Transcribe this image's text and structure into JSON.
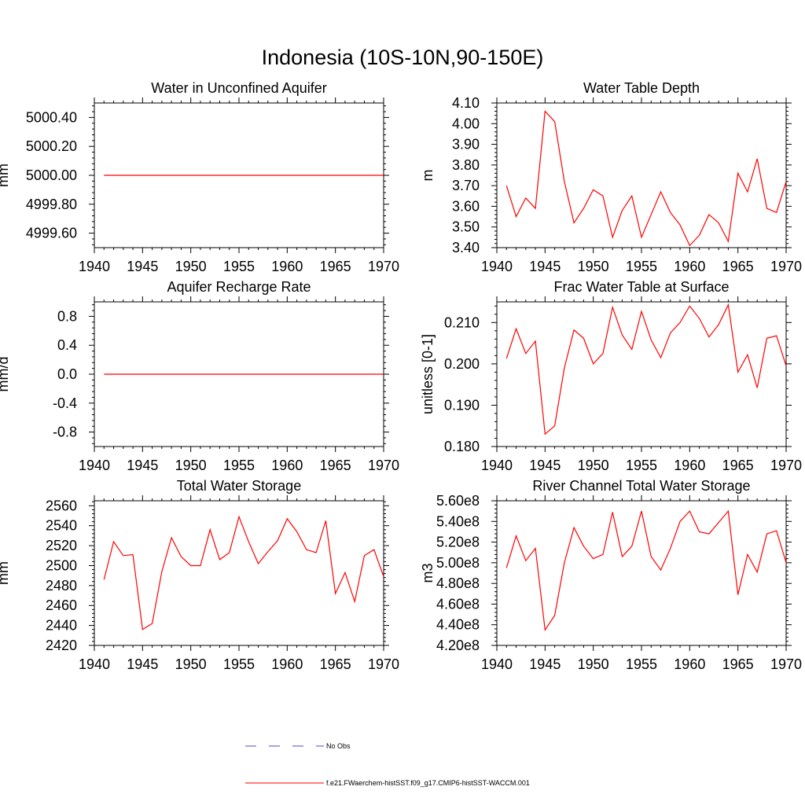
{
  "figure": {
    "title": "Indonesia (10S-10N,90-150E)",
    "legend": {
      "entries": [
        {
          "label": "No Obs",
          "color": "#4a4ac8",
          "style": "dashed"
        },
        {
          "label": "f.e21.FWaerchem-histSST.f09_g17.CMIP6-histSST-WACCM.001",
          "color": "#ff0000",
          "style": "solid"
        }
      ]
    }
  },
  "chart_data": [
    {
      "type": "line",
      "title": "Water in Unconfined Aquifer",
      "xlabel": "",
      "ylabel": "mm",
      "xlim": [
        1940,
        1970
      ],
      "ylim": [
        4999.5,
        5000.5
      ],
      "xticks": [
        1940,
        1945,
        1950,
        1955,
        1960,
        1965,
        1970
      ],
      "yticks": [
        4999.6,
        4999.8,
        5000.0,
        5000.2,
        5000.4
      ],
      "ytick_labels": [
        "4999.60",
        "4999.80",
        "5000.00",
        "5000.20",
        "5000.40"
      ],
      "series": [
        {
          "color": "#ff0000",
          "x": [
            1941,
            1942,
            1943,
            1944,
            1945,
            1946,
            1947,
            1948,
            1949,
            1950,
            1951,
            1952,
            1953,
            1954,
            1955,
            1956,
            1957,
            1958,
            1959,
            1960,
            1961,
            1962,
            1963,
            1964,
            1965,
            1966,
            1967,
            1968,
            1969,
            1970
          ],
          "y": [
            5000,
            5000,
            5000,
            5000,
            5000,
            5000,
            5000,
            5000,
            5000,
            5000,
            5000,
            5000,
            5000,
            5000,
            5000,
            5000,
            5000,
            5000,
            5000,
            5000,
            5000,
            5000,
            5000,
            5000,
            5000,
            5000,
            5000,
            5000,
            5000,
            5000
          ]
        }
      ]
    },
    {
      "type": "line",
      "title": "Water Table Depth",
      "xlabel": "",
      "ylabel": "m",
      "xlim": [
        1940,
        1970
      ],
      "ylim": [
        3.4,
        4.1
      ],
      "xticks": [
        1940,
        1945,
        1950,
        1955,
        1960,
        1965,
        1970
      ],
      "yticks": [
        3.4,
        3.5,
        3.6,
        3.7,
        3.8,
        3.9,
        4.0,
        4.1
      ],
      "ytick_labels": [
        "3.40",
        "3.50",
        "3.60",
        "3.70",
        "3.80",
        "3.90",
        "4.00",
        "4.10"
      ],
      "series": [
        {
          "color": "#ff0000",
          "x": [
            1941,
            1942,
            1943,
            1944,
            1945,
            1946,
            1947,
            1948,
            1949,
            1950,
            1951,
            1952,
            1953,
            1954,
            1955,
            1956,
            1957,
            1958,
            1959,
            1960,
            1961,
            1962,
            1963,
            1964,
            1965,
            1966,
            1967,
            1968,
            1969,
            1970
          ],
          "y": [
            3.7,
            3.55,
            3.64,
            3.59,
            4.06,
            4.01,
            3.72,
            3.52,
            3.59,
            3.68,
            3.65,
            3.45,
            3.58,
            3.65,
            3.45,
            3.56,
            3.67,
            3.57,
            3.51,
            3.41,
            3.46,
            3.56,
            3.52,
            3.43,
            3.76,
            3.67,
            3.83,
            3.59,
            3.57,
            3.72
          ]
        }
      ]
    },
    {
      "type": "line",
      "title": "Aquifer Recharge Rate",
      "xlabel": "",
      "ylabel": "mm/d",
      "xlim": [
        1940,
        1970
      ],
      "ylim": [
        -1.0,
        1.0
      ],
      "xticks": [
        1940,
        1945,
        1950,
        1955,
        1960,
        1965,
        1970
      ],
      "yticks": [
        -0.8,
        -0.4,
        0.0,
        0.4,
        0.8
      ],
      "ytick_labels": [
        "-0.8",
        "-0.4",
        "0.0",
        "0.4",
        "0.8"
      ],
      "series": [
        {
          "color": "#ff0000",
          "x": [
            1941,
            1942,
            1943,
            1944,
            1945,
            1946,
            1947,
            1948,
            1949,
            1950,
            1951,
            1952,
            1953,
            1954,
            1955,
            1956,
            1957,
            1958,
            1959,
            1960,
            1961,
            1962,
            1963,
            1964,
            1965,
            1966,
            1967,
            1968,
            1969,
            1970
          ],
          "y": [
            0,
            0,
            0,
            0,
            0,
            0,
            0,
            0,
            0,
            0,
            0,
            0,
            0,
            0,
            0,
            0,
            0,
            0,
            0,
            0,
            0,
            0,
            0,
            0,
            0,
            0,
            0,
            0,
            0,
            0
          ]
        }
      ]
    },
    {
      "type": "line",
      "title": "Frac Water Table at Surface",
      "xlabel": "",
      "ylabel": "unitless [0-1]",
      "xlim": [
        1940,
        1970
      ],
      "ylim": [
        0.18,
        0.215
      ],
      "xticks": [
        1940,
        1945,
        1950,
        1955,
        1960,
        1965,
        1970
      ],
      "yticks": [
        0.18,
        0.19,
        0.2,
        0.21
      ],
      "ytick_labels": [
        "0.180",
        "0.190",
        "0.200",
        "0.210"
      ],
      "series": [
        {
          "color": "#ff0000",
          "x": [
            1941,
            1942,
            1943,
            1944,
            1945,
            1946,
            1947,
            1948,
            1949,
            1950,
            1951,
            1952,
            1953,
            1954,
            1955,
            1956,
            1957,
            1958,
            1959,
            1960,
            1961,
            1962,
            1963,
            1964,
            1965,
            1966,
            1967,
            1968,
            1969,
            1970
          ],
          "y": [
            0.2013,
            0.2085,
            0.2025,
            0.2055,
            0.183,
            0.185,
            0.199,
            0.2082,
            0.2062,
            0.2,
            0.2025,
            0.2137,
            0.207,
            0.2035,
            0.2127,
            0.2058,
            0.2015,
            0.2075,
            0.21,
            0.214,
            0.211,
            0.2065,
            0.2095,
            0.2143,
            0.198,
            0.2022,
            0.1942,
            0.2062,
            0.2068,
            0.1995
          ]
        }
      ]
    },
    {
      "type": "line",
      "title": "Total Water Storage",
      "xlabel": "",
      "ylabel": "mm",
      "xlim": [
        1940,
        1970
      ],
      "ylim": [
        2420,
        2565
      ],
      "xticks": [
        1940,
        1945,
        1950,
        1955,
        1960,
        1965,
        1970
      ],
      "yticks": [
        2420,
        2440,
        2460,
        2480,
        2500,
        2520,
        2540,
        2560
      ],
      "ytick_labels": [
        "2420",
        "2440",
        "2460",
        "2480",
        "2500",
        "2520",
        "2540",
        "2560"
      ],
      "series": [
        {
          "color": "#ff0000",
          "x": [
            1941,
            1942,
            1943,
            1944,
            1945,
            1946,
            1947,
            1948,
            1949,
            1950,
            1951,
            1952,
            1953,
            1954,
            1955,
            1956,
            1957,
            1958,
            1959,
            1960,
            1961,
            1962,
            1963,
            1964,
            1965,
            1966,
            1967,
            1968,
            1969,
            1970
          ],
          "y": [
            2486,
            2524,
            2510,
            2511,
            2436,
            2442,
            2494,
            2528,
            2509,
            2500,
            2500,
            2536,
            2506,
            2513,
            2549,
            2524,
            2502,
            2514,
            2525,
            2547,
            2534,
            2516,
            2513,
            2545,
            2472,
            2493,
            2464,
            2510,
            2516,
            2489
          ]
        }
      ]
    },
    {
      "type": "line",
      "title": "River Channel Total Water Storage",
      "xlabel": "",
      "ylabel": "m3",
      "xlim": [
        1940,
        1970
      ],
      "ylim": [
        420000000,
        560000000
      ],
      "xticks": [
        1940,
        1945,
        1950,
        1955,
        1960,
        1965,
        1970
      ],
      "yticks": [
        420000000,
        440000000,
        460000000,
        480000000,
        500000000,
        520000000,
        540000000,
        560000000
      ],
      "ytick_labels": [
        "4.20e8",
        "4.40e8",
        "4.60e8",
        "4.80e8",
        "5.00e8",
        "5.20e8",
        "5.40e8",
        "5.60e8"
      ],
      "series": [
        {
          "color": "#ff0000",
          "x": [
            1941,
            1942,
            1943,
            1944,
            1945,
            1946,
            1947,
            1948,
            1949,
            1950,
            1951,
            1952,
            1953,
            1954,
            1955,
            1956,
            1957,
            1958,
            1959,
            1960,
            1961,
            1962,
            1963,
            1964,
            1965,
            1966,
            1967,
            1968,
            1969,
            1970
          ],
          "y": [
            495000000,
            526000000,
            502000000,
            514000000,
            435000000,
            449000000,
            500000000,
            534000000,
            516000000,
            504000000,
            508000000,
            549000000,
            506000000,
            516000000,
            550000000,
            506000000,
            493000000,
            514000000,
            540000000,
            550000000,
            530000000,
            528000000,
            539000000,
            550000000,
            469000000,
            508000000,
            491000000,
            528000000,
            531000000,
            500000000
          ]
        }
      ]
    }
  ]
}
